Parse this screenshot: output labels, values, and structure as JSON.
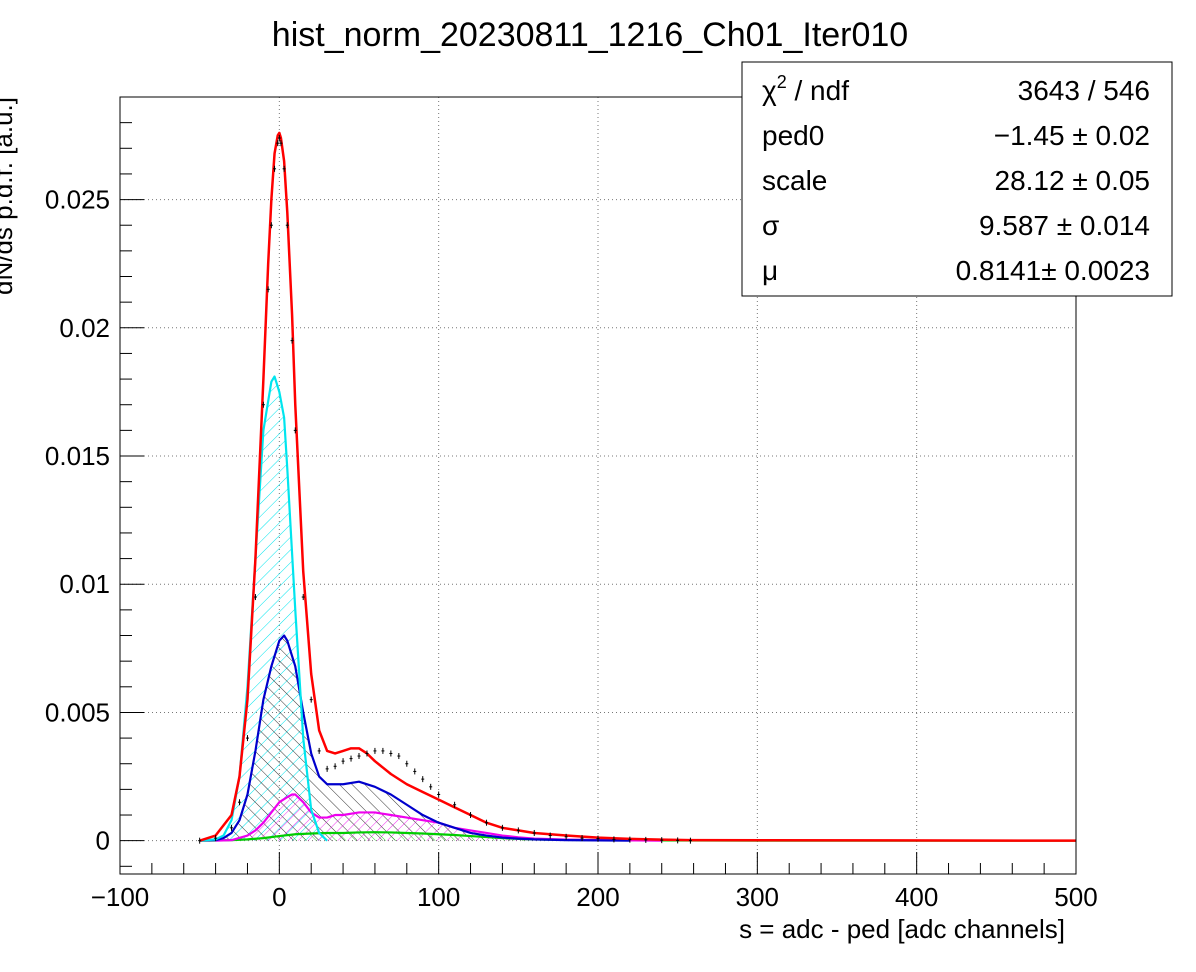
{
  "chart_data": {
    "type": "line",
    "title": "hist_norm_20230811_1216_Ch01_Iter010",
    "xlabel": "s = adc - ped [adc channels]",
    "ylabel": "dN/ds p.d.f. [a.u.]",
    "xlim": [
      -100,
      500
    ],
    "ylim": [
      -0.0013,
      0.029
    ],
    "grid": true,
    "x_ticks": [
      -100,
      0,
      100,
      200,
      300,
      400,
      500
    ],
    "x_tick_labels": [
      "−100",
      "0",
      "100",
      "200",
      "300",
      "400",
      "500"
    ],
    "y_ticks": [
      0,
      0.005,
      0.01,
      0.015,
      0.02,
      0.025
    ],
    "y_tick_labels": [
      "0",
      "0.005",
      "0.01",
      "0.015",
      "0.02",
      "0.025"
    ],
    "stats_box": {
      "placement": "top-right",
      "rows": [
        {
          "label_main": "χ",
          "label_sup": "2",
          "label_rest": " / ndf",
          "value": "3643 / 546"
        },
        {
          "label_main": "ped0",
          "label_sup": "",
          "label_rest": "",
          "value": "−1.45 ± 0.02"
        },
        {
          "label_main": "scale",
          "label_sup": "",
          "label_rest": "",
          "value": "28.12 ± 0.05"
        },
        {
          "label_main": "σ",
          "label_sup": "",
          "label_rest": "",
          "value": "9.587 ± 0.014"
        },
        {
          "label_main": "μ",
          "label_sup": "",
          "label_rest": "",
          "value": "0.8141± 0.0023"
        }
      ]
    },
    "series": [
      {
        "role": "data histogram",
        "color": "#000000",
        "style": "points",
        "x": [
          -50,
          -40,
          -30,
          -25,
          -20,
          -15,
          -10,
          -7,
          -5,
          -3,
          -1,
          0,
          1,
          3,
          5,
          8,
          10,
          15,
          20,
          25,
          30,
          35,
          40,
          45,
          50,
          55,
          60,
          65,
          70,
          75,
          80,
          85,
          90,
          95,
          100,
          110,
          120,
          130,
          140,
          150,
          160,
          170,
          180,
          190,
          200,
          210,
          220,
          230,
          240,
          250,
          258
        ],
        "y": [
          0.0,
          0.0001,
          0.0005,
          0.0015,
          0.004,
          0.0095,
          0.017,
          0.0215,
          0.024,
          0.0262,
          0.0272,
          0.0274,
          0.0272,
          0.0262,
          0.024,
          0.0195,
          0.016,
          0.0095,
          0.0055,
          0.0035,
          0.0028,
          0.0029,
          0.0031,
          0.0032,
          0.0033,
          0.0034,
          0.0035,
          0.0035,
          0.0034,
          0.0033,
          0.003,
          0.0027,
          0.0024,
          0.0021,
          0.0018,
          0.0014,
          0.001,
          0.0007,
          0.0005,
          0.0004,
          0.0003,
          0.0002,
          0.00015,
          0.0001,
          8e-05,
          5e-05,
          4e-05,
          3e-05,
          2e-05,
          1e-05,
          0.0
        ]
      },
      {
        "role": "total fit",
        "color": "#ff0000",
        "style": "line",
        "x": [
          -50,
          -40,
          -30,
          -25,
          -20,
          -15,
          -10,
          -7,
          -5,
          -3,
          -1,
          0,
          1,
          3,
          5,
          8,
          10,
          15,
          20,
          25,
          30,
          35,
          40,
          45,
          50,
          55,
          60,
          70,
          80,
          90,
          100,
          110,
          120,
          130,
          140,
          150,
          160,
          180,
          200,
          220,
          240,
          258
        ],
        "y": [
          0.0,
          0.0002,
          0.001,
          0.0025,
          0.0055,
          0.011,
          0.018,
          0.0225,
          0.025,
          0.0268,
          0.0275,
          0.0276,
          0.0274,
          0.0265,
          0.0245,
          0.0205,
          0.017,
          0.0105,
          0.0065,
          0.0043,
          0.0035,
          0.0034,
          0.0035,
          0.0036,
          0.0036,
          0.0034,
          0.0031,
          0.0026,
          0.0022,
          0.0019,
          0.0016,
          0.0013,
          0.001,
          0.0007,
          0.0005,
          0.0004,
          0.0003,
          0.0002,
          0.00012,
          7e-05,
          4e-05,
          2e-05
        ]
      },
      {
        "role": "pedestal component",
        "color": "#00e5ee",
        "style": "hatched",
        "x": [
          -50,
          -40,
          -35,
          -30,
          -25,
          -20,
          -15,
          -10,
          -5,
          -3,
          0,
          3,
          5,
          10,
          15,
          20,
          25,
          30
        ],
        "y": [
          0.0,
          5e-05,
          0.0002,
          0.0008,
          0.0025,
          0.006,
          0.011,
          0.016,
          0.0179,
          0.0181,
          0.0175,
          0.0165,
          0.0145,
          0.009,
          0.004,
          0.0012,
          0.0003,
          0.0
        ]
      },
      {
        "role": "1 photoelectron component",
        "color": "#0000cc",
        "style": "hatched",
        "x": [
          -50,
          -40,
          -35,
          -30,
          -25,
          -20,
          -15,
          -10,
          -5,
          0,
          3,
          5,
          10,
          15,
          20,
          25,
          30,
          40,
          50,
          60,
          70,
          80,
          90,
          100,
          110,
          120,
          130,
          140,
          150,
          160,
          180,
          200,
          220
        ],
        "y": [
          0.0,
          2e-05,
          0.0001,
          0.0003,
          0.0008,
          0.0018,
          0.0035,
          0.0055,
          0.0068,
          0.0078,
          0.008,
          0.0078,
          0.0068,
          0.005,
          0.0034,
          0.0025,
          0.0022,
          0.0022,
          0.0023,
          0.0021,
          0.0018,
          0.0014,
          0.001,
          0.0007,
          0.0005,
          0.0003,
          0.0002,
          0.00012,
          8e-05,
          5e-05,
          2e-05,
          1e-05,
          0.0
        ]
      },
      {
        "role": "2 photoelectron component",
        "color": "#ee00ee",
        "style": "hatched",
        "x": [
          -40,
          -30,
          -20,
          -15,
          -10,
          -5,
          0,
          5,
          8,
          10,
          15,
          20,
          25,
          30,
          35,
          40,
          50,
          60,
          70,
          80,
          90,
          100,
          110,
          120,
          130,
          140,
          150,
          160,
          180,
          200,
          220,
          240
        ],
        "y": [
          0.0,
          2e-05,
          0.0002,
          0.0004,
          0.0007,
          0.0011,
          0.0015,
          0.0017,
          0.0018,
          0.0018,
          0.0015,
          0.0011,
          0.0009,
          0.0009,
          0.001,
          0.001,
          0.0011,
          0.0011,
          0.001,
          0.0009,
          0.0008,
          0.0007,
          0.0005,
          0.0004,
          0.0003,
          0.0002,
          0.00013,
          8e-05,
          4e-05,
          2e-05,
          1e-05,
          0.0
        ]
      },
      {
        "role": "3 photoelectron component",
        "color": "#00cc00",
        "style": "hatched",
        "x": [
          -50,
          -30,
          -20,
          -10,
          0,
          10,
          20,
          30,
          40,
          50,
          60,
          70,
          80,
          90,
          100,
          110,
          120,
          130,
          140,
          150,
          160,
          180,
          200,
          240,
          300,
          400,
          500
        ],
        "y": [
          0.0,
          2e-05,
          5e-05,
          0.0001,
          0.00018,
          0.00025,
          0.00028,
          0.0003,
          0.0003,
          0.00032,
          0.00033,
          0.00032,
          0.0003,
          0.00028,
          0.00025,
          0.00022,
          0.00018,
          0.00014,
          0.0001,
          7e-05,
          5e-05,
          3e-05,
          2e-05,
          1e-05,
          0.0,
          0.0,
          0.0
        ]
      }
    ]
  }
}
